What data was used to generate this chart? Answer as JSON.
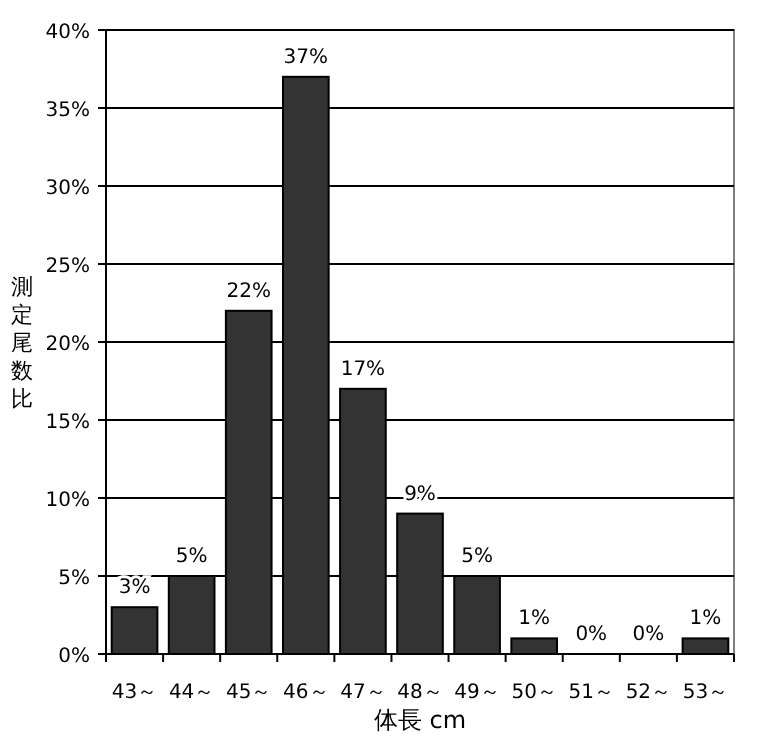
{
  "chart_data": {
    "type": "bar",
    "categories": [
      "43～",
      "44～",
      "45～",
      "46～",
      "47～",
      "48～",
      "49～",
      "50～",
      "51～",
      "52～",
      "53～"
    ],
    "values": [
      3,
      5,
      22,
      37,
      17,
      9,
      5,
      1,
      0,
      0,
      1
    ],
    "value_labels": [
      "3%",
      "5%",
      "22%",
      "37%",
      "17%",
      "9%",
      "5%",
      "1%",
      "0%",
      "0%",
      "1%"
    ],
    "color": "#333333",
    "xlabel": "体長 cm",
    "ylabel": "測定尾数比",
    "ylim": [
      0,
      40
    ],
    "yticks": [
      {
        "value": 0,
        "label": "0%"
      },
      {
        "value": 5,
        "label": "5%"
      },
      {
        "value": 10,
        "label": "10%"
      },
      {
        "value": 15,
        "label": "15%"
      },
      {
        "value": 20,
        "label": "20%"
      },
      {
        "value": 25,
        "label": "25%"
      },
      {
        "value": 30,
        "label": "30%"
      },
      {
        "value": 35,
        "label": "35%"
      },
      {
        "value": 40,
        "label": "40%"
      }
    ],
    "grid": "y"
  }
}
